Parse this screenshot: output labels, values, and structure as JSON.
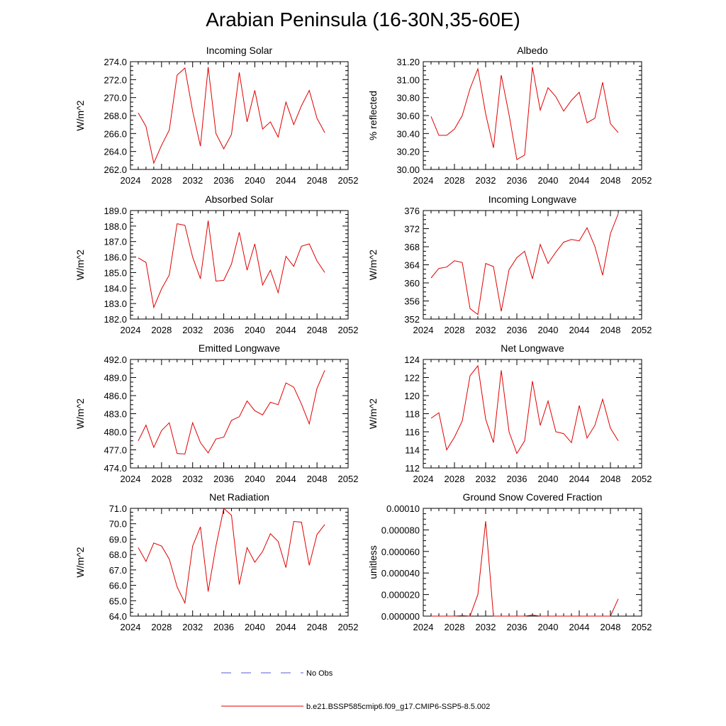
{
  "figure": {
    "title": "Arabian Peninsula (16-30N,35-60E)"
  },
  "legend": {
    "items": [
      {
        "label": "No Obs",
        "color": "#5a5ad6",
        "style": "dashed"
      },
      {
        "label": "b.e21.BSSP585cmip6.f09_g17.CMIP6-SSP5-8.5.002",
        "color": "#e00000",
        "style": "solid"
      }
    ]
  },
  "chart_data": [
    {
      "type": "line",
      "title": "Incoming Solar",
      "ylabel": "W/m^2",
      "xlabel": "",
      "xlim": [
        2024,
        2052
      ],
      "xticks": [
        2024,
        2028,
        2032,
        2036,
        2040,
        2044,
        2048,
        2052
      ],
      "ylim": [
        262,
        274
      ],
      "yticks": [
        "262.0",
        "264.0",
        "266.0",
        "268.0",
        "270.0",
        "272.0",
        "274.0"
      ],
      "x": [
        2025,
        2026,
        2027,
        2028,
        2029,
        2030,
        2031,
        2032,
        2033,
        2034,
        2035,
        2036,
        2037,
        2038,
        2039,
        2040,
        2041,
        2042,
        2043,
        2044,
        2045,
        2046,
        2047,
        2048,
        2049
      ],
      "series": [
        {
          "color": "#e00000",
          "values": [
            268.3,
            266.8,
            262.7,
            264.7,
            266.4,
            272.5,
            273.3,
            268.5,
            264.6,
            273.4,
            266.0,
            264.3,
            265.9,
            272.8,
            267.3,
            270.8,
            266.5,
            267.3,
            265.6,
            269.5,
            267.0,
            269.1,
            270.8,
            267.7,
            266.1
          ]
        }
      ]
    },
    {
      "type": "line",
      "title": "Albedo",
      "ylabel": "% reflected",
      "xlabel": "",
      "xlim": [
        2024,
        2052
      ],
      "xticks": [
        2024,
        2028,
        2032,
        2036,
        2040,
        2044,
        2048,
        2052
      ],
      "ylim": [
        30.0,
        31.2
      ],
      "yticks": [
        "30.00",
        "30.20",
        "30.40",
        "30.60",
        "30.80",
        "31.00",
        "31.20"
      ],
      "x": [
        2025,
        2026,
        2027,
        2028,
        2029,
        2030,
        2031,
        2032,
        2033,
        2034,
        2035,
        2036,
        2037,
        2038,
        2039,
        2040,
        2041,
        2042,
        2043,
        2044,
        2045,
        2046,
        2047,
        2048,
        2049
      ],
      "series": [
        {
          "color": "#e00000",
          "values": [
            30.59,
            30.38,
            30.38,
            30.45,
            30.6,
            30.9,
            31.12,
            30.62,
            30.24,
            31.05,
            30.61,
            30.11,
            30.16,
            31.14,
            30.66,
            30.91,
            30.81,
            30.65,
            30.77,
            30.86,
            30.52,
            30.57,
            30.97,
            30.51,
            30.41
          ]
        }
      ]
    },
    {
      "type": "line",
      "title": "Absorbed Solar",
      "ylabel": "W/m^2",
      "xlabel": "",
      "xlim": [
        2024,
        2052
      ],
      "xticks": [
        2024,
        2028,
        2032,
        2036,
        2040,
        2044,
        2048,
        2052
      ],
      "ylim": [
        182,
        189
      ],
      "yticks": [
        "182.0",
        "183.0",
        "184.0",
        "185.0",
        "186.0",
        "187.0",
        "188.0",
        "189.0"
      ],
      "x": [
        2025,
        2026,
        2027,
        2028,
        2029,
        2030,
        2031,
        2032,
        2033,
        2034,
        2035,
        2036,
        2037,
        2038,
        2039,
        2040,
        2041,
        2042,
        2043,
        2044,
        2045,
        2046,
        2047,
        2048,
        2049
      ],
      "series": [
        {
          "color": "#e00000",
          "values": [
            185.95,
            185.65,
            182.75,
            183.95,
            184.85,
            188.15,
            188.05,
            186.0,
            184.6,
            188.35,
            184.45,
            184.5,
            185.55,
            187.6,
            185.15,
            186.85,
            184.2,
            185.15,
            183.7,
            186.05,
            185.4,
            186.7,
            186.85,
            185.75,
            185.0
          ]
        }
      ]
    },
    {
      "type": "line",
      "title": "Incoming Longwave",
      "ylabel": "W/m^2",
      "xlabel": "",
      "xlim": [
        2024,
        2052
      ],
      "xticks": [
        2024,
        2028,
        2032,
        2036,
        2040,
        2044,
        2048,
        2052
      ],
      "ylim": [
        352,
        376
      ],
      "yticks": [
        "352",
        "356",
        "360",
        "364",
        "368",
        "372",
        "376"
      ],
      "x": [
        2025,
        2026,
        2027,
        2028,
        2029,
        2030,
        2031,
        2032,
        2033,
        2034,
        2035,
        2036,
        2037,
        2038,
        2039,
        2040,
        2041,
        2042,
        2043,
        2044,
        2045,
        2046,
        2047,
        2048,
        2049
      ],
      "series": [
        {
          "color": "#e00000",
          "values": [
            361.1,
            363.2,
            363.5,
            364.9,
            364.5,
            354.3,
            353.0,
            364.3,
            363.6,
            353.7,
            362.9,
            365.6,
            367.0,
            360.9,
            368.5,
            364.3,
            366.8,
            369.0,
            369.6,
            369.3,
            372.2,
            368.1,
            361.7,
            370.9,
            375.3
          ]
        }
      ]
    },
    {
      "type": "line",
      "title": "Emitted Longwave",
      "ylabel": "W/m^2",
      "xlabel": "",
      "xlim": [
        2024,
        2052
      ],
      "xticks": [
        2024,
        2028,
        2032,
        2036,
        2040,
        2044,
        2048,
        2052
      ],
      "ylim": [
        474,
        492
      ],
      "yticks": [
        "474.0",
        "477.0",
        "480.0",
        "483.0",
        "486.0",
        "489.0",
        "492.0"
      ],
      "x": [
        2025,
        2026,
        2027,
        2028,
        2029,
        2030,
        2031,
        2032,
        2033,
        2034,
        2035,
        2036,
        2037,
        2038,
        2039,
        2040,
        2041,
        2042,
        2043,
        2044,
        2045,
        2046,
        2047,
        2048,
        2049
      ],
      "series": [
        {
          "color": "#e00000",
          "values": [
            478.5,
            481.1,
            477.4,
            480.2,
            481.5,
            476.4,
            476.3,
            481.5,
            478.2,
            476.5,
            478.8,
            479.1,
            481.9,
            482.5,
            485.1,
            483.5,
            482.8,
            484.9,
            484.5,
            488.1,
            487.4,
            484.6,
            481.3,
            487.2,
            490.2
          ]
        }
      ]
    },
    {
      "type": "line",
      "title": "Net Longwave",
      "ylabel": "W/m^2",
      "xlabel": "",
      "xlim": [
        2024,
        2052
      ],
      "xticks": [
        2024,
        2028,
        2032,
        2036,
        2040,
        2044,
        2048,
        2052
      ],
      "ylim": [
        112,
        124
      ],
      "yticks": [
        "112",
        "114",
        "116",
        "118",
        "120",
        "122",
        "124"
      ],
      "x": [
        2025,
        2026,
        2027,
        2028,
        2029,
        2030,
        2031,
        2032,
        2033,
        2034,
        2035,
        2036,
        2037,
        2038,
        2039,
        2040,
        2041,
        2042,
        2043,
        2044,
        2045,
        2046,
        2047,
        2048,
        2049
      ],
      "series": [
        {
          "color": "#e00000",
          "values": [
            117.5,
            118.1,
            114.0,
            115.4,
            117.2,
            122.2,
            123.3,
            117.4,
            114.8,
            122.8,
            116.0,
            113.6,
            115.0,
            121.6,
            116.7,
            119.4,
            116.0,
            115.8,
            114.8,
            118.9,
            115.3,
            116.7,
            119.6,
            116.4,
            115.0
          ]
        }
      ]
    },
    {
      "type": "line",
      "title": "Net Radiation",
      "ylabel": "W/m^2",
      "xlabel": "",
      "xlim": [
        2024,
        2052
      ],
      "xticks": [
        2024,
        2028,
        2032,
        2036,
        2040,
        2044,
        2048,
        2052
      ],
      "ylim": [
        64,
        71
      ],
      "yticks": [
        "64.0",
        "65.0",
        "66.0",
        "67.0",
        "68.0",
        "69.0",
        "70.0",
        "71.0"
      ],
      "x": [
        2025,
        2026,
        2027,
        2028,
        2029,
        2030,
        2031,
        2032,
        2033,
        2034,
        2035,
        2036,
        2037,
        2038,
        2039,
        2040,
        2041,
        2042,
        2043,
        2044,
        2045,
        2046,
        2047,
        2048,
        2049
      ],
      "series": [
        {
          "color": "#e00000",
          "values": [
            68.45,
            67.55,
            68.75,
            68.55,
            67.7,
            65.9,
            64.85,
            68.55,
            69.8,
            65.6,
            68.55,
            71.0,
            70.55,
            66.05,
            68.45,
            67.5,
            68.2,
            69.35,
            68.85,
            67.15,
            70.15,
            70.1,
            67.3,
            69.3,
            69.95
          ]
        }
      ]
    },
    {
      "type": "line",
      "title": "Ground Snow Covered Fraction",
      "ylabel": "unitless",
      "xlabel": "",
      "xlim": [
        2024,
        2052
      ],
      "xticks": [
        2024,
        2028,
        2032,
        2036,
        2040,
        2044,
        2048,
        2052
      ],
      "ylim": [
        0,
        0.0001
      ],
      "yticks": [
        "0.000000",
        "0.000020",
        "0.000040",
        "0.000060",
        "0.000080",
        "0.00010"
      ],
      "x": [
        2025,
        2026,
        2027,
        2028,
        2029,
        2030,
        2031,
        2032,
        2033,
        2034,
        2035,
        2036,
        2037,
        2038,
        2039,
        2040,
        2041,
        2042,
        2043,
        2044,
        2045,
        2046,
        2047,
        2048,
        2049
      ],
      "series": [
        {
          "color": "#e00000",
          "values": [
            0,
            0,
            0,
            0,
            5e-07,
            0,
            2e-05,
            8.8e-05,
            0,
            0,
            0,
            0,
            0,
            1e-06,
            0,
            0,
            0,
            0,
            0,
            0,
            0,
            0,
            0,
            0,
            1.6e-05
          ]
        }
      ]
    }
  ]
}
